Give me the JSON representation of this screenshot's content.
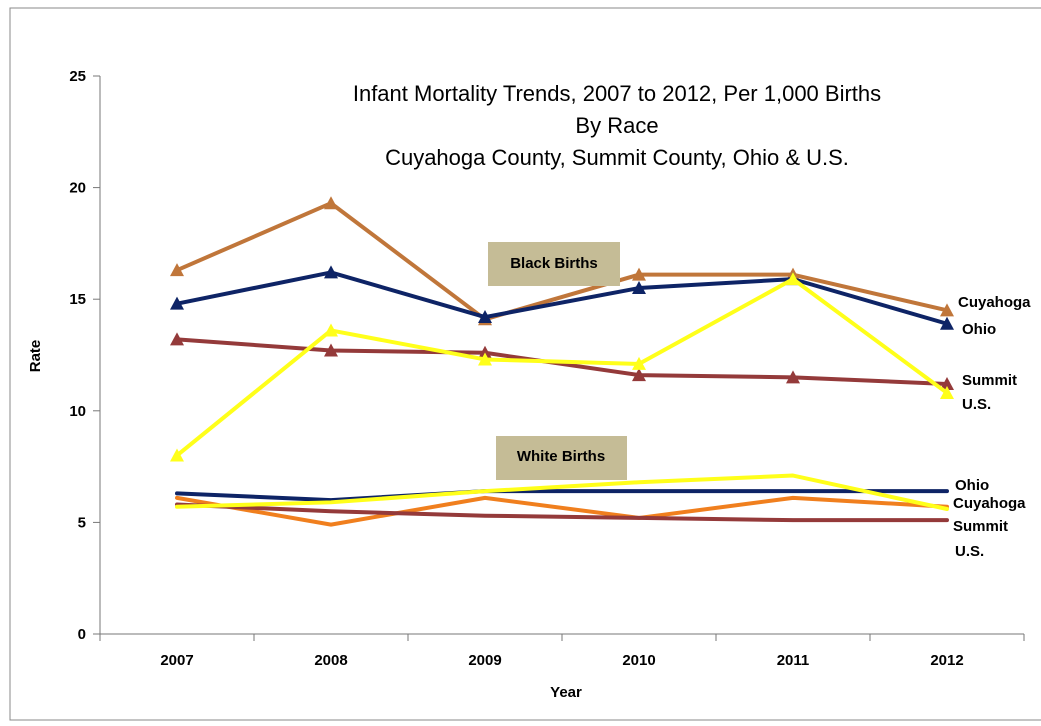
{
  "chart_data": {
    "type": "line",
    "title": [
      "Infant Mortality Trends, 2007 to 2012, Per 1,000 Births",
      "By Race",
      "Cuyahoga County, Summit County, Ohio & U.S."
    ],
    "xlabel": "Year",
    "ylabel": "Rate",
    "categories": [
      "2007",
      "2008",
      "2009",
      "2010",
      "2011",
      "2012"
    ],
    "ylim": [
      0,
      25
    ],
    "yticks": [
      0,
      5,
      10,
      15,
      20,
      25
    ],
    "grid": false,
    "legend": "none",
    "groups": [
      {
        "label": "Black Births",
        "series": [
          {
            "name": "Cuyahoga",
            "color": "#C0763A",
            "marker": "triangle",
            "values": [
              16.3,
              19.3,
              14.1,
              16.1,
              16.1,
              14.5
            ]
          },
          {
            "name": "Ohio",
            "color": "#0E2466",
            "marker": "triangle",
            "values": [
              14.8,
              16.2,
              14.2,
              15.5,
              15.9,
              13.9
            ]
          },
          {
            "name": "Summit",
            "color": "#943A3A",
            "marker": "triangle",
            "values": [
              13.2,
              12.7,
              12.6,
              11.6,
              11.5,
              11.2
            ]
          },
          {
            "name": "U.S.",
            "color": "#FFFF1A",
            "marker": "triangle",
            "values": [
              8.0,
              13.6,
              12.3,
              12.1,
              15.9,
              10.8
            ]
          }
        ]
      },
      {
        "label": "White Births",
        "series": [
          {
            "name": "Ohio",
            "color": "#0E2466",
            "marker": "none",
            "values": [
              6.3,
              6.0,
              6.4,
              6.4,
              6.4,
              6.4
            ]
          },
          {
            "name": "Cuyahoga",
            "color": "#F07F1E",
            "marker": "none",
            "values": [
              6.1,
              4.9,
              6.1,
              5.2,
              6.1,
              5.7
            ]
          },
          {
            "name": "Summit",
            "color": "#943A3A",
            "marker": "none",
            "values": [
              5.8,
              5.5,
              5.3,
              5.2,
              5.1,
              5.1
            ]
          },
          {
            "name": "U.S.",
            "color": "#FFFF1A",
            "marker": "none",
            "values": [
              5.7,
              5.9,
              6.4,
              6.8,
              7.1,
              5.6
            ]
          }
        ]
      }
    ],
    "end_labels": [
      {
        "text": "Cuyahoga",
        "group": 0,
        "series": 0
      },
      {
        "text": "Ohio",
        "group": 0,
        "series": 1
      },
      {
        "text": "Summit",
        "group": 0,
        "series": 2
      },
      {
        "text": "U.S.",
        "group": 0,
        "series": 3
      },
      {
        "text": "Ohio",
        "group": 1,
        "series": 0
      },
      {
        "text": "Cuyahoga",
        "group": 1,
        "series": 1
      },
      {
        "text": "Summit",
        "group": 1,
        "series": 2
      },
      {
        "text": "U.S.",
        "group": 1,
        "series": 3
      }
    ]
  }
}
